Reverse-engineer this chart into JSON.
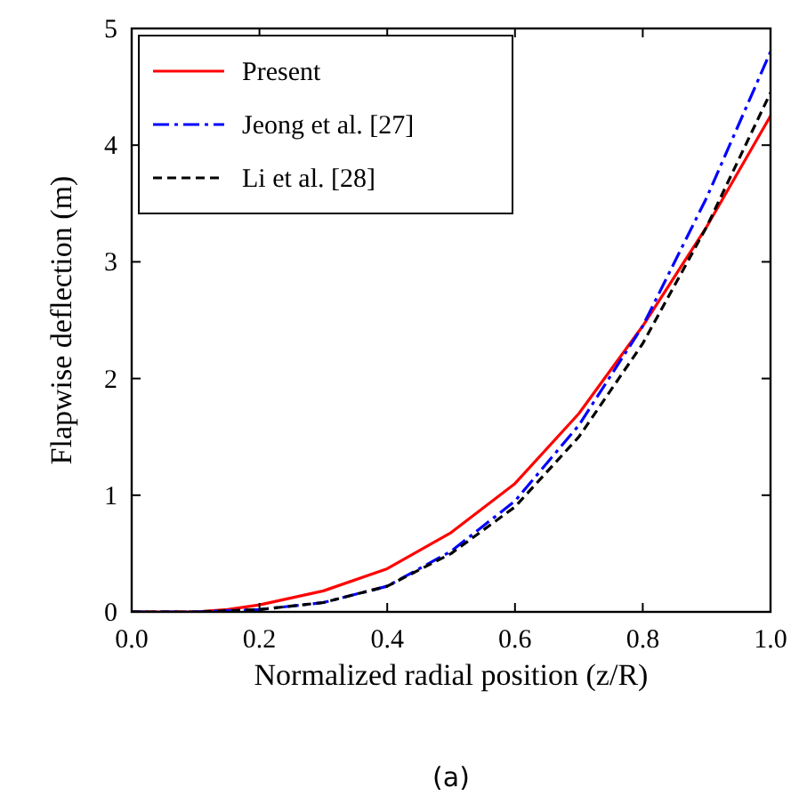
{
  "chart_data": {
    "type": "line",
    "xlabel": "Normalized radial position (z/R)",
    "ylabel": "Flapwise deflection (m)",
    "annotations": [
      "(a)"
    ],
    "x": [
      0,
      0.1,
      0.15,
      0.2,
      0.3,
      0.4,
      0.5,
      0.6,
      0.7,
      0.8,
      0.9,
      1.0
    ],
    "series": [
      {
        "name": "Present",
        "color": "#ff0000",
        "line_style": "solid",
        "values": [
          0,
          0,
          0.02,
          0.06,
          0.18,
          0.37,
          0.68,
          1.1,
          1.7,
          2.45,
          3.3,
          4.25
        ]
      },
      {
        "name": "Jeong et al. [27]",
        "color": "#0000ff",
        "line_style": "dashdot",
        "values": [
          0,
          0,
          0.01,
          0.02,
          0.08,
          0.22,
          0.52,
          0.95,
          1.6,
          2.45,
          3.55,
          4.8
        ]
      },
      {
        "name": "Li et al. [28]",
        "color": "#000000",
        "line_style": "dashed",
        "values": [
          0,
          0,
          0.01,
          0.02,
          0.08,
          0.22,
          0.5,
          0.9,
          1.5,
          2.3,
          3.3,
          4.45
        ]
      }
    ],
    "xlim": [
      0,
      1
    ],
    "ylim": [
      0,
      5
    ],
    "xticks": [
      {
        "value": 0,
        "label": "0.0"
      },
      {
        "value": 0.2,
        "label": "0.2"
      },
      {
        "value": 0.4,
        "label": "0.4"
      },
      {
        "value": 0.6,
        "label": "0.6"
      },
      {
        "value": 0.8,
        "label": "0.8"
      },
      {
        "value": 1,
        "label": "1.0"
      }
    ],
    "yticks": [
      0,
      1,
      2,
      3,
      4,
      5
    ],
    "legend": "top left",
    "grid": false
  }
}
